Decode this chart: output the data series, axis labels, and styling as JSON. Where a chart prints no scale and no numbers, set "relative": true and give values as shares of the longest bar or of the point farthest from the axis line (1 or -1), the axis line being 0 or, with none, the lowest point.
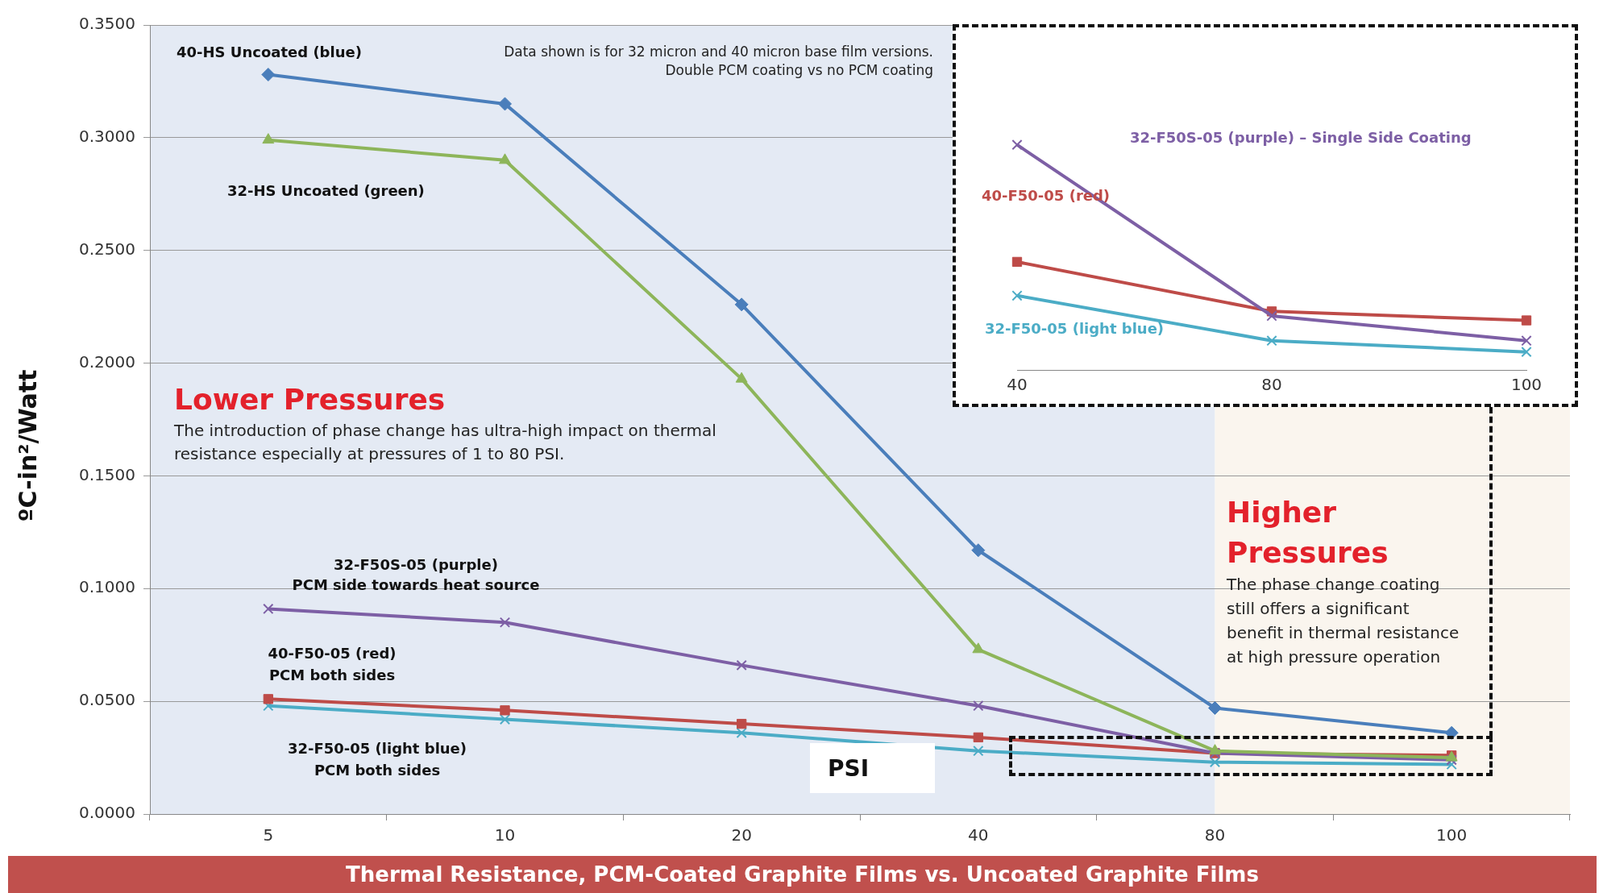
{
  "chart_data": [
    {
      "type": "line",
      "title": "Thermal Resistance, PCM-Coated Graphite Films vs. Uncoated Graphite Films",
      "xlabel": "PSI",
      "ylabel": "ºC-in²/Watt",
      "categories": [
        "5",
        "10",
        "20",
        "40",
        "80",
        "100"
      ],
      "ylim": [
        0,
        0.35
      ],
      "yticks": [
        {
          "value": 0,
          "label": "0.0000"
        },
        {
          "value": 0.05,
          "label": "0.0500"
        },
        {
          "value": 0.1,
          "label": "0.1000"
        },
        {
          "value": 0.15,
          "label": "0.1500"
        },
        {
          "value": 0.2,
          "label": "0.2000"
        },
        {
          "value": 0.25,
          "label": "0.2500"
        },
        {
          "value": 0.3,
          "label": "0.3000"
        },
        {
          "value": 0.35,
          "label": "0.3500"
        }
      ],
      "grid": "y",
      "legend": false,
      "line_style": "solid",
      "bands": [
        {
          "axis": "x",
          "from": "5",
          "to": "80",
          "color": "#e4eaf4"
        },
        {
          "axis": "x",
          "from": "80",
          "to": "100",
          "color": "#faf5ee"
        }
      ],
      "annotations": [
        "Data shown is for 32 micron and 40 micron base film versions.",
        "Double PCM coating vs no PCM coating",
        "Lower Pressures",
        "The introduction of phase change has ultra-high impact on thermal resistance especially at pressures of 1 to 80 PSI.",
        "Higher Pressures",
        "The phase change coating still offers a significant benefit in thermal resistance at high pressure operation",
        "PCM side towards heat source",
        "PCM both sides",
        "PCM both sides"
      ],
      "series": [
        {
          "name": "40-HS Uncoated (blue)",
          "color": "#4a7ebb",
          "marker": "diamond",
          "values": [
            0.328,
            0.315,
            0.226,
            0.117,
            0.047,
            0.036
          ]
        },
        {
          "name": "32-HS Uncoated (green)",
          "color": "#8db55a",
          "marker": "triangle",
          "values": [
            0.299,
            0.29,
            0.193,
            0.073,
            0.028,
            0.025
          ]
        },
        {
          "name": "32-F50S-05 (purple)",
          "color": "#7d5fa5",
          "marker": "cross",
          "values": [
            0.091,
            0.085,
            0.066,
            0.048,
            0.027,
            0.024
          ]
        },
        {
          "name": "40-F50-05 (red)",
          "color": "#be4b48",
          "marker": "square",
          "values": [
            0.051,
            0.046,
            0.04,
            0.034,
            0.027,
            0.026
          ]
        },
        {
          "name": "32-F50-05 (light blue)",
          "color": "#4bacc6",
          "marker": "cross",
          "values": [
            0.048,
            0.042,
            0.036,
            0.028,
            0.023,
            0.022
          ]
        }
      ]
    },
    {
      "type": "line",
      "categories": [
        "40",
        "80",
        "100"
      ],
      "relative": true,
      "legend": false,
      "line_style": "solid",
      "series": [
        {
          "name": "32-F50S-05 (purple) – Single Side Coating",
          "color": "#7d5fa5",
          "marker": "cross",
          "values": [
            1,
            0.24,
            0.13
          ]
        },
        {
          "name": "40-F50-05 (red)",
          "color": "#be4b48",
          "marker": "square",
          "values": [
            0.48,
            0.26,
            0.22
          ]
        },
        {
          "name": "32-F50-05 (light blue)",
          "color": "#4bacc6",
          "marker": "cross",
          "values": [
            0.33,
            0.13,
            0.08
          ]
        }
      ]
    }
  ]
}
